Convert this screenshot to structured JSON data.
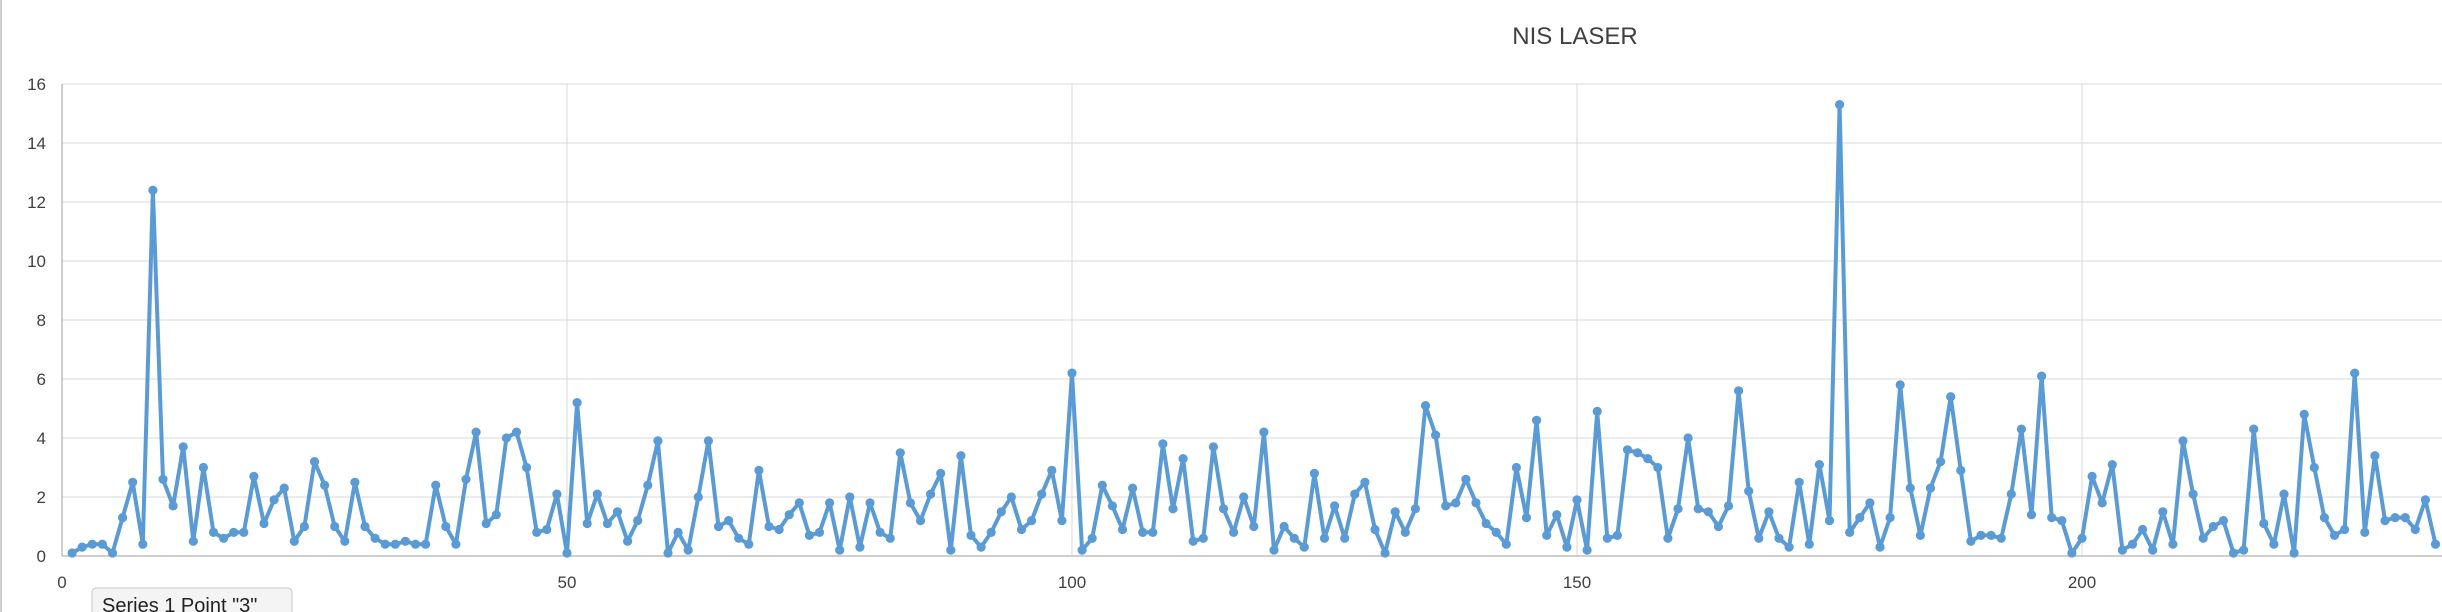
{
  "colors": {
    "series": "#5b9bd5",
    "grid": "#d9d9d9",
    "axis": "#bfbfbf",
    "text": "#404040",
    "background": "#ffffff"
  },
  "tooltip": {
    "text": "Series 1 Point \"3\""
  },
  "chart_data": {
    "type": "line",
    "title": "NIS LASER",
    "xlabel": "",
    "ylabel": "",
    "xlim": [
      0,
      237
    ],
    "ylim": [
      0,
      16
    ],
    "x_ticks": [
      0,
      50,
      100,
      150,
      200
    ],
    "y_ticks": [
      0,
      2,
      4,
      6,
      8,
      10,
      12,
      14,
      16
    ],
    "grid": true,
    "legend": "none",
    "series": [
      {
        "x_start": 1,
        "values": [
          0.1,
          0.3,
          0.4,
          0.4,
          0.1,
          1.3,
          2.5,
          0.4,
          12.4,
          2.6,
          1.7,
          3.7,
          0.5,
          3.0,
          0.8,
          0.6,
          0.8,
          0.8,
          2.7,
          1.1,
          1.9,
          2.3,
          0.5,
          1.0,
          3.2,
          2.4,
          1.0,
          0.5,
          2.5,
          1.0,
          0.6,
          0.4,
          0.4,
          0.5,
          0.4,
          0.4,
          2.4,
          1.0,
          0.4,
          2.6,
          4.2,
          1.1,
          1.4,
          4.0,
          4.2,
          3.0,
          0.8,
          0.9,
          2.1,
          0.1,
          5.2,
          1.1,
          2.1,
          1.1,
          1.5,
          0.5,
          1.2,
          2.4,
          3.9,
          0.1,
          0.8,
          0.2,
          2.0,
          3.9,
          1.0,
          1.2,
          0.6,
          0.4,
          2.9,
          1.0,
          0.9,
          1.4,
          1.8,
          0.7,
          0.8,
          1.8,
          0.2,
          2.0,
          0.3,
          1.8,
          0.8,
          0.6,
          3.5,
          1.8,
          1.2,
          2.1,
          2.8,
          0.2,
          3.4,
          0.7,
          0.3,
          0.8,
          1.5,
          2.0,
          0.9,
          1.2,
          2.1,
          2.9,
          1.2,
          6.2,
          0.2,
          0.6,
          2.4,
          1.7,
          0.9,
          2.3,
          0.8,
          0.8,
          3.8,
          1.6,
          3.3,
          0.5,
          0.6,
          3.7,
          1.6,
          0.8,
          2.0,
          1.0,
          4.2,
          0.2,
          1.0,
          0.6,
          0.3,
          2.8,
          0.6,
          1.7,
          0.6,
          2.1,
          2.5,
          0.9,
          0.1,
          1.5,
          0.8,
          1.6,
          5.1,
          4.1,
          1.7,
          1.8,
          2.6,
          1.8,
          1.1,
          0.8,
          0.4,
          3.0,
          1.3,
          4.6,
          0.7,
          1.4,
          0.3,
          1.9,
          0.2,
          4.9,
          0.6,
          0.7,
          3.6,
          3.5,
          3.3,
          3.0,
          0.6,
          1.6,
          4.0,
          1.6,
          1.5,
          1.0,
          1.7,
          5.6,
          2.2,
          0.6,
          1.5,
          0.6,
          0.3,
          2.5,
          0.4,
          3.1,
          1.2,
          15.3,
          0.8,
          1.3,
          1.8,
          0.3,
          1.3,
          5.8,
          2.3,
          0.7,
          2.3,
          3.2,
          5.4,
          2.9,
          0.5,
          0.7,
          0.7,
          0.6,
          2.1,
          4.3,
          1.4,
          6.1,
          1.3,
          1.2,
          0.1,
          0.6,
          2.7,
          1.8,
          3.1,
          0.2,
          0.4,
          0.9,
          0.2,
          1.5,
          0.4,
          3.9,
          2.1,
          0.6,
          1.0,
          1.2,
          0.1,
          0.2,
          4.3,
          1.1,
          0.4,
          2.1,
          0.1,
          4.8,
          3.0,
          1.3,
          0.7,
          0.9,
          6.2,
          0.8,
          3.4,
          1.2,
          1.3,
          1.3,
          0.9,
          1.9,
          0.4
        ]
      }
    ]
  }
}
